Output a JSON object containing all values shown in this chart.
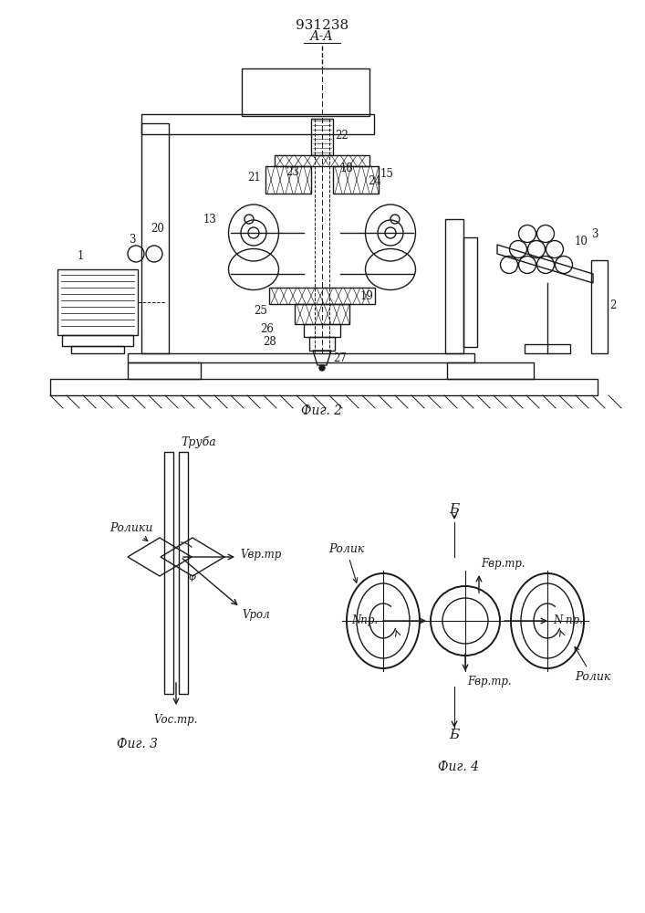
{
  "title": "931238",
  "bg_color": "#ffffff",
  "line_color": "#1a1a1a",
  "fig2_caption": "Фиг. 2",
  "fig3_caption": "Фиг. 3",
  "fig4_caption": "Фиг. 4",
  "section_aa": "А-А",
  "tube_label": "Труба",
  "roliki_label": "Ролики",
  "rolik_label": "Ролик",
  "npr_label": "Nпр.",
  "fvr_label": "Fвр.тр.",
  "vvr_label": "Vвр.тр",
  "vrol_label": "Vрол",
  "vos_label": "Vос.тр.",
  "b_label": "Б",
  "phi_label": "φ"
}
